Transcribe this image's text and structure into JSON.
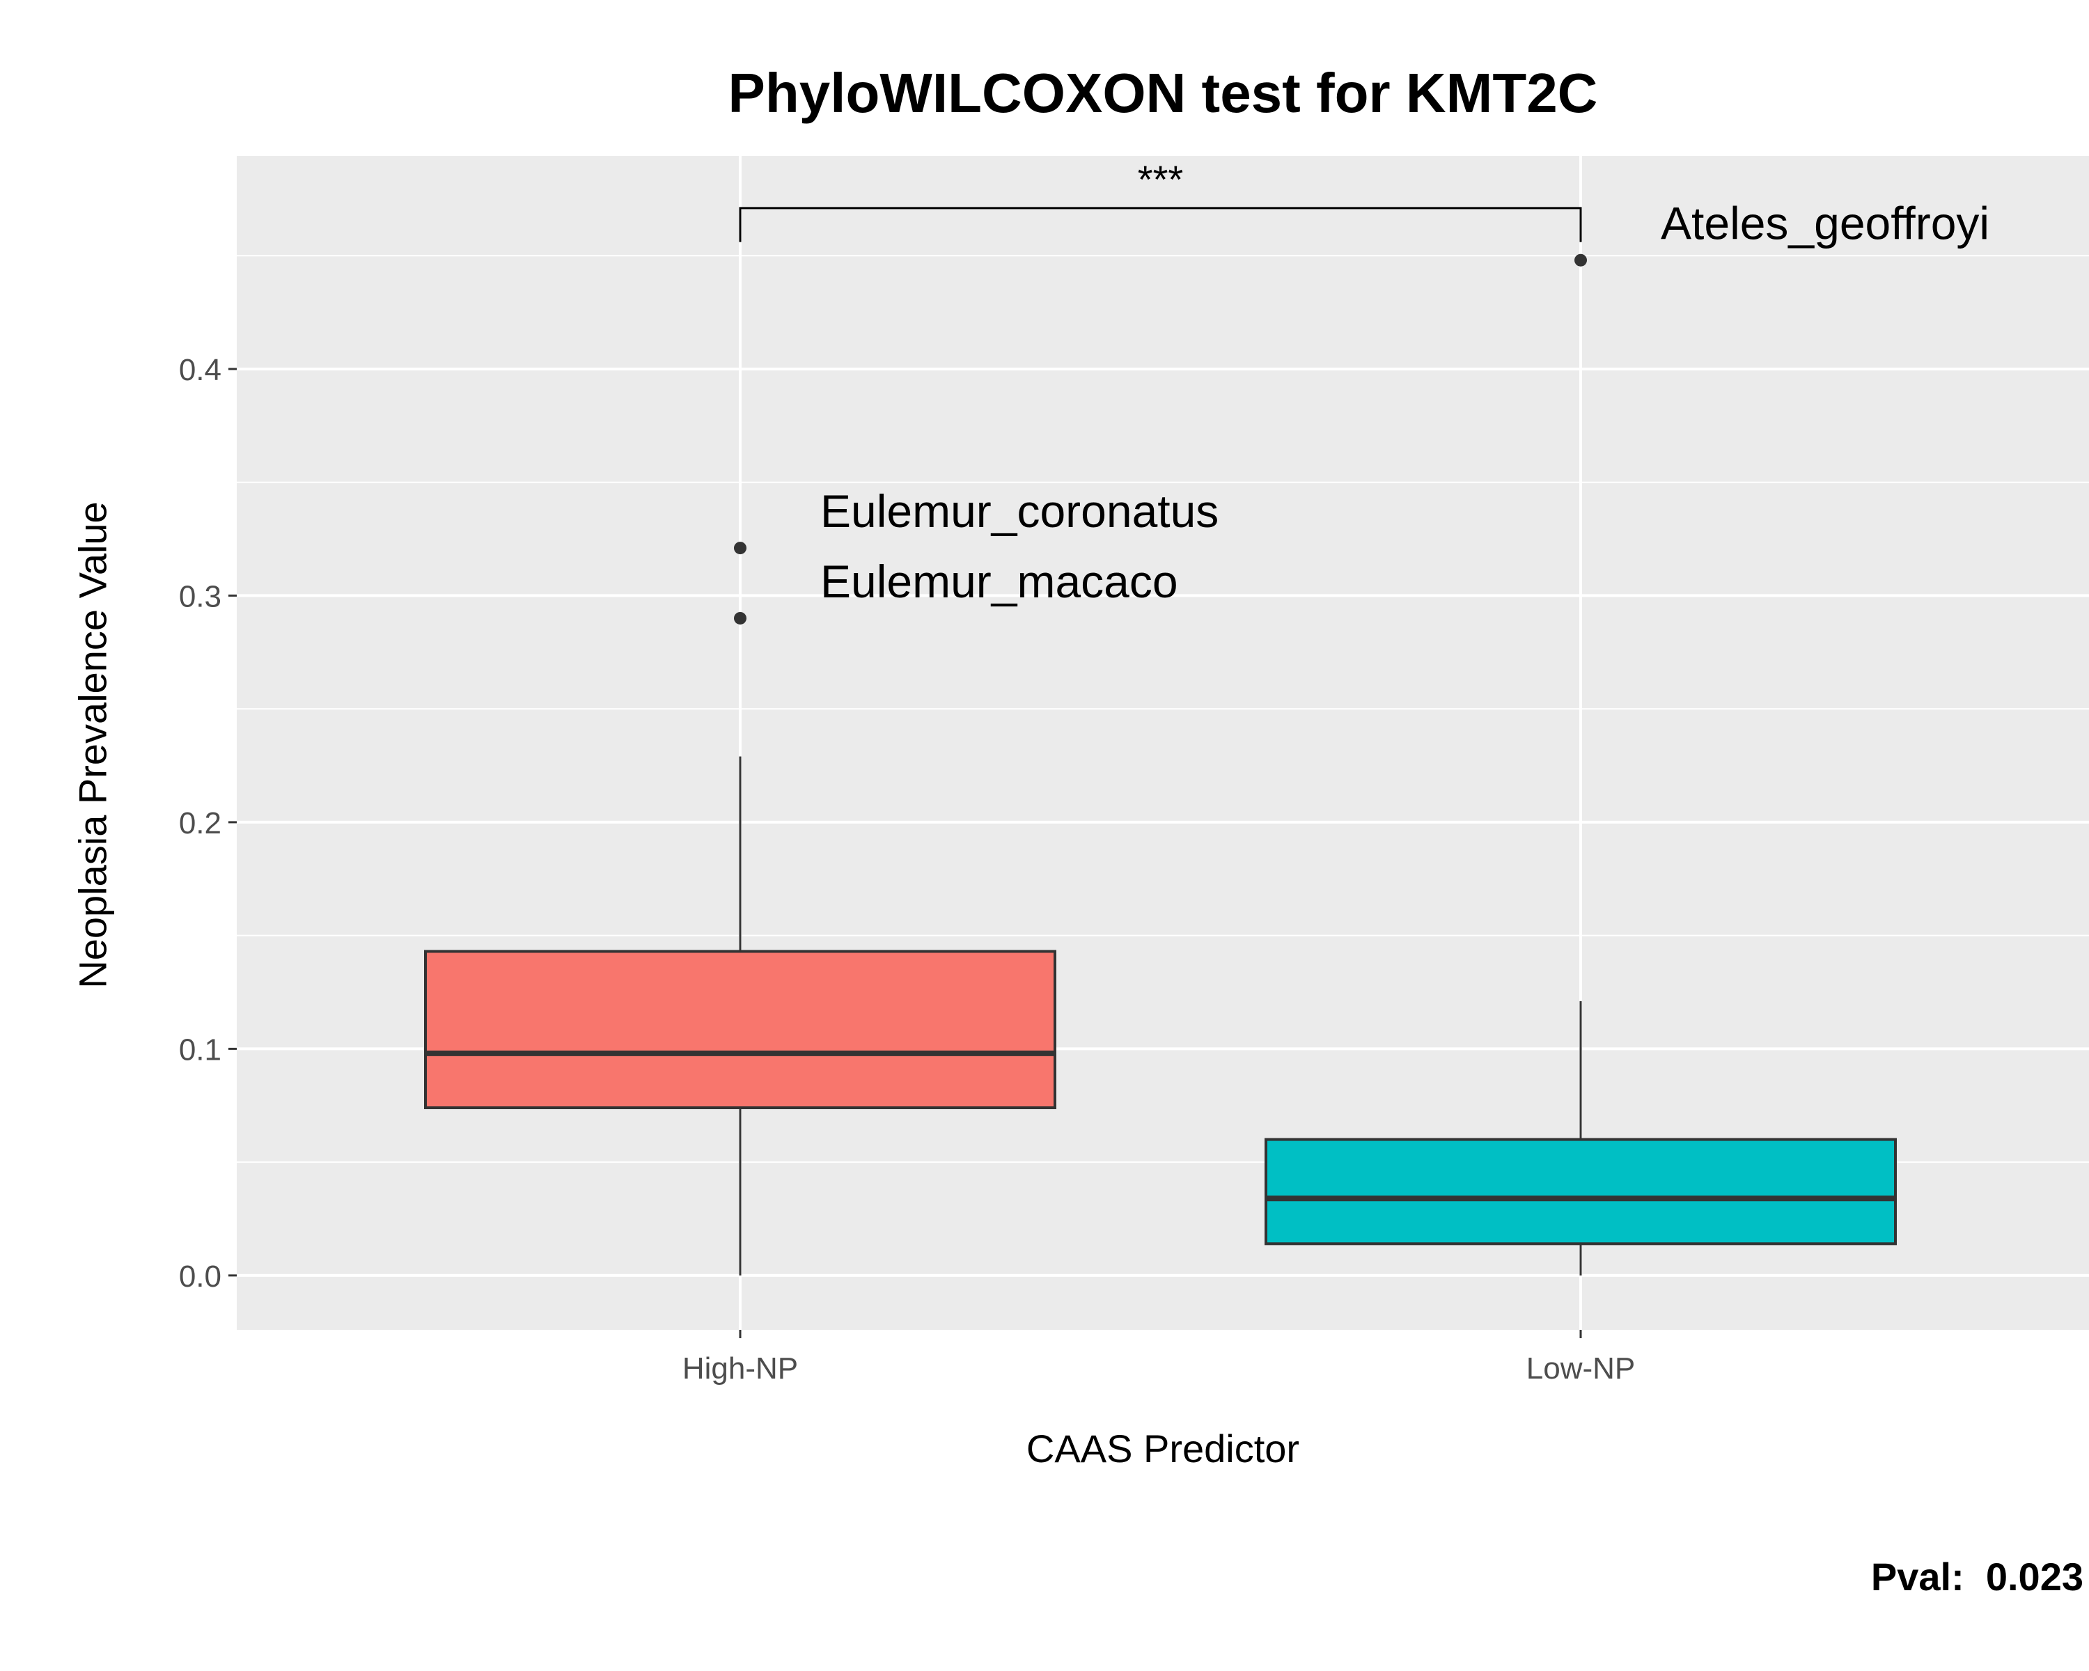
{
  "chart_data": {
    "type": "box",
    "title": "PhyloWILCOXON test for KMT2C",
    "xlabel": "CAAS Predictor",
    "ylabel": "Neoplasia Prevalence Value",
    "ylim": [
      -0.024,
      0.494
    ],
    "yticks": [
      0.0,
      0.1,
      0.2,
      0.3,
      0.4
    ],
    "ytick_labels": [
      "0.0",
      "0.1",
      "0.2",
      "0.3",
      "0.4"
    ],
    "categories": [
      "High-NP",
      "Low-NP"
    ],
    "grid": true,
    "legend": "none",
    "boxes": [
      {
        "category": "High-NP",
        "color": "#F8766D",
        "whisker_low": 0.0,
        "q1": 0.074,
        "median": 0.098,
        "q3": 0.143,
        "whisker_high": 0.229,
        "outliers": [
          {
            "value": 0.321,
            "label": "Eulemur_coronatus"
          },
          {
            "value": 0.29,
            "label": "Eulemur_macaco"
          }
        ]
      },
      {
        "category": "Low-NP",
        "color": "#00BFC4",
        "whisker_low": 0.0,
        "q1": 0.014,
        "median": 0.034,
        "q3": 0.06,
        "whisker_high": 0.121,
        "outliers": [
          {
            "value": 0.448,
            "label": "Ateles_geoffroyi"
          }
        ]
      }
    ],
    "significance": {
      "from": "High-NP",
      "to": "Low-NP",
      "y": 0.471,
      "tick_bottom": 0.456,
      "label": "***"
    },
    "annotation": "Pval:  0.023"
  },
  "colors": {
    "panel_background": "#EBEBEB",
    "grid": "#FFFFFF",
    "box_outline": "#333333",
    "axis_text": "#4D4D4D"
  }
}
